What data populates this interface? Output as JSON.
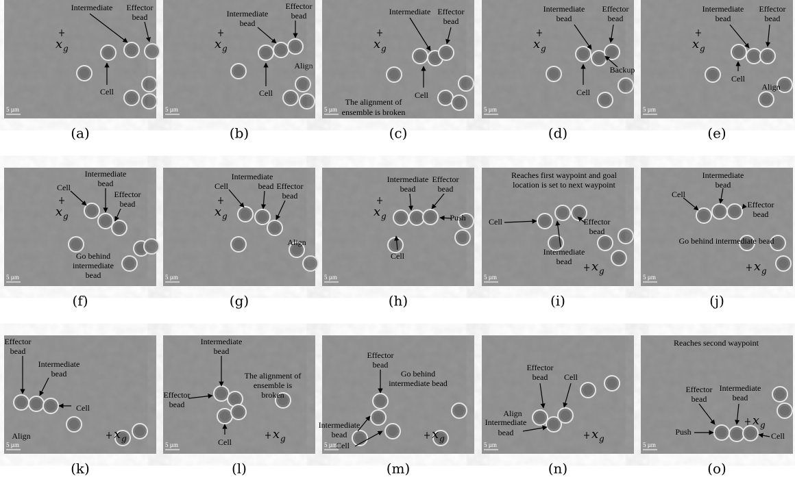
{
  "scale_label": "5 µm",
  "goal_label": "x",
  "goal_subscript": "g",
  "panels": [
    {
      "caption": "(a)",
      "labels": [
        "Intermediate",
        "Effector",
        "bead",
        "Cell"
      ]
    },
    {
      "caption": "(b)",
      "labels": [
        "Intermediate",
        "bead",
        "Effector",
        "bead",
        "Cell",
        "Align"
      ]
    },
    {
      "caption": "(c)",
      "labels": [
        "Intermediate",
        "Effector",
        "bead",
        "Cell",
        "The alignment of",
        "ensemble is broken"
      ]
    },
    {
      "caption": "(d)",
      "labels": [
        "Intermediate",
        "Effector",
        "bead",
        "bead",
        "Cell",
        "Backup"
      ]
    },
    {
      "caption": "(e)",
      "labels": [
        "Intermediate",
        "Effector",
        "bead",
        "bead",
        "Cell",
        "Align"
      ]
    },
    {
      "caption": "(f)",
      "labels": [
        "Intermediate",
        "Cell",
        "bead",
        "Effector",
        "bead",
        "Go behind",
        "intermediate",
        "bead"
      ]
    },
    {
      "caption": "(g)",
      "labels": [
        "Intermediate",
        "Cell",
        "bead",
        "Effector",
        "bead",
        "Align"
      ]
    },
    {
      "caption": "(h)",
      "labels": [
        "Intermediate",
        "Effector",
        "bead",
        "bead",
        "Push",
        "Cell"
      ]
    },
    {
      "caption": "(i)",
      "labels": [
        "Reaches first waypoint and goal",
        "location is set to next waypoint",
        "Cell",
        "Effector",
        "bead",
        "Intermediate",
        "bead"
      ]
    },
    {
      "caption": "(j)",
      "labels": [
        "Intermediate",
        "bead",
        "Cell",
        "Effector",
        "bead",
        "Go behind intermediate bead"
      ]
    },
    {
      "caption": "(k)",
      "labels": [
        "Effector",
        "bead",
        "Intermediate",
        "bead",
        "Cell",
        "Align"
      ]
    },
    {
      "caption": "(l)",
      "labels": [
        "Intermediate",
        "bead",
        "Effector",
        "bead",
        "The alignment of",
        "ensemble is",
        "broken",
        "Cell"
      ]
    },
    {
      "caption": "(m)",
      "labels": [
        "Effector",
        "bead",
        "Go behind",
        "intermediate bead",
        "Intermediate",
        "bead",
        "Cell"
      ]
    },
    {
      "caption": "(n)",
      "labels": [
        "Effector",
        "bead",
        "Cell",
        "Align",
        "Intermediate",
        "bead"
      ]
    },
    {
      "caption": "(o)",
      "labels": [
        "Reaches second waypoint",
        "Effector",
        "bead",
        "Intermediate",
        "bead",
        "Push",
        "Cell"
      ]
    }
  ]
}
